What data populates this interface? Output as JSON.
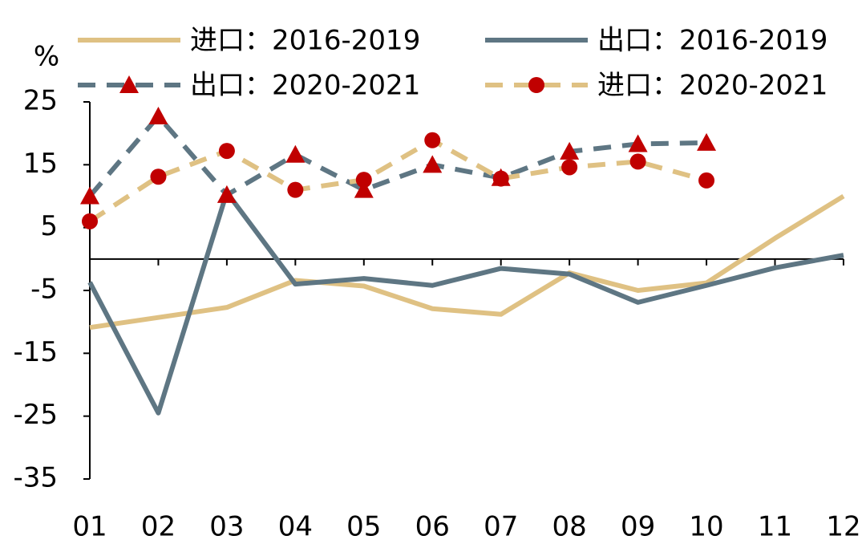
{
  "chart_data": {
    "type": "line",
    "ylabel": "%",
    "categories": [
      "01",
      "02",
      "03",
      "04",
      "05",
      "06",
      "07",
      "08",
      "09",
      "10",
      "11",
      "12"
    ],
    "ylim": [
      -35,
      25
    ],
    "yticks": [
      25,
      15,
      5,
      -5,
      -15,
      -25,
      -35
    ],
    "series": [
      {
        "name": "进口：2016-2019",
        "color": "#dfc183",
        "dashed": false,
        "values": [
          -10.9,
          -9.3,
          -7.7,
          -3.4,
          -4.3,
          -7.9,
          -8.8,
          -2.2,
          -5.0,
          -3.8,
          3.3,
          10.0
        ]
      },
      {
        "name": "出口：2016-2019",
        "color": "#5e7683",
        "dashed": false,
        "values": [
          -3.7,
          -24.5,
          10.6,
          -4.0,
          -3.1,
          -4.2,
          -1.5,
          -2.4,
          -6.9,
          -4.2,
          -1.4,
          0.6
        ]
      },
      {
        "name": "出口：2020-2021",
        "color": "#5e7683",
        "dashed": true,
        "marker": "triangle",
        "marker_color": "#c00000",
        "values": [
          10.0,
          22.7,
          10.2,
          16.6,
          11.0,
          15.0,
          12.9,
          17.1,
          18.3,
          18.5,
          null,
          null
        ]
      },
      {
        "name": "进口：2020-2021",
        "color": "#dfc183",
        "dashed": true,
        "marker": "circle",
        "marker_color": "#c00000",
        "values": [
          6.0,
          13.1,
          17.2,
          11.0,
          12.6,
          18.9,
          12.8,
          14.6,
          15.5,
          12.5,
          null,
          null
        ]
      }
    ]
  }
}
